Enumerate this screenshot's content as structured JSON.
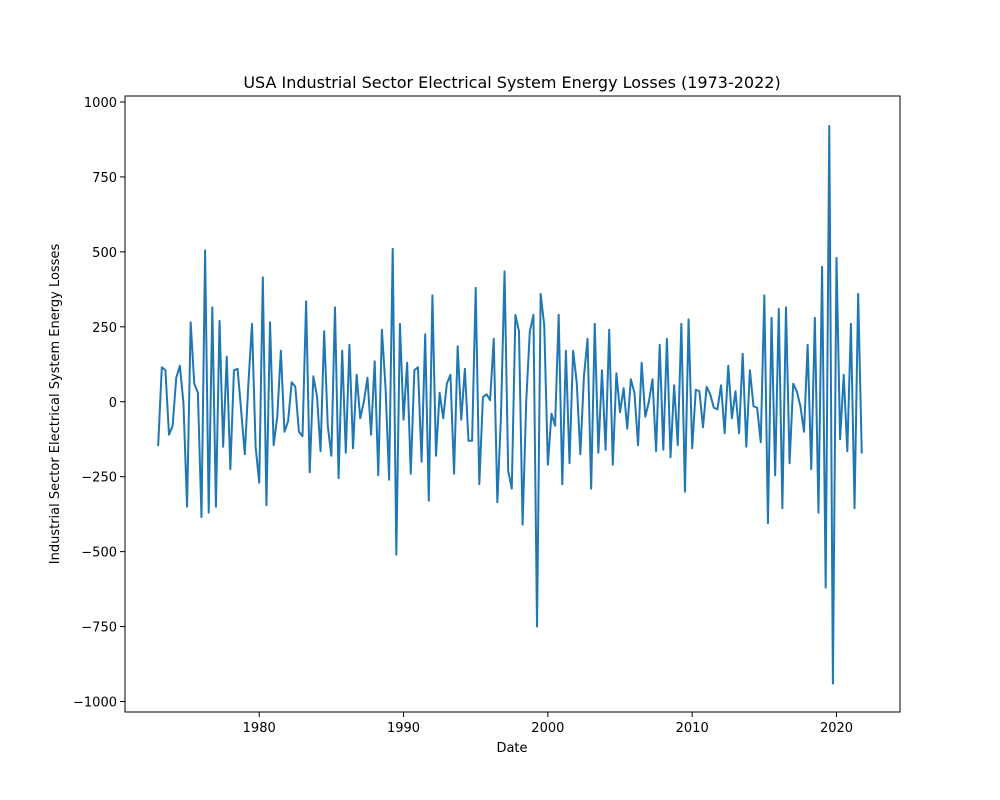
{
  "chart_data": {
    "type": "line",
    "title": "USA Industrial Sector Electrical System Energy Losses (1973-2022)",
    "xlabel": "Date",
    "ylabel": "Industrial Sector Electrical System Energy Losses",
    "xlim": [
      1970.7,
      2024.4
    ],
    "ylim": [
      -1035,
      1020
    ],
    "x_ticks": [
      1980,
      1990,
      2000,
      2010,
      2020
    ],
    "y_ticks": [
      -1000,
      -750,
      -500,
      -250,
      0,
      250,
      500,
      750,
      1000
    ],
    "grid": false,
    "line_color": "#1f77b4",
    "series": [
      {
        "x": [
          1973.0,
          1973.25,
          1973.5,
          1973.75,
          1974.0,
          1974.25,
          1974.5,
          1974.75,
          1975.0,
          1975.25,
          1975.5,
          1975.75,
          1976.0,
          1976.25,
          1976.5,
          1976.75,
          1977.0,
          1977.25,
          1977.5,
          1977.75,
          1978.0,
          1978.25,
          1978.5,
          1978.75,
          1979.0,
          1979.25,
          1979.5,
          1979.75,
          1980.0,
          1980.25,
          1980.5,
          1980.75,
          1981.0,
          1981.25,
          1981.5,
          1981.75,
          1982.0,
          1982.25,
          1982.5,
          1982.75,
          1983.0,
          1983.25,
          1983.5,
          1983.75,
          1984.0,
          1984.25,
          1984.5,
          1984.75,
          1985.0,
          1985.25,
          1985.5,
          1985.75,
          1986.0,
          1986.25,
          1986.5,
          1986.75,
          1987.0,
          1987.25,
          1987.5,
          1987.75,
          1988.0,
          1988.25,
          1988.5,
          1988.75,
          1989.0,
          1989.25,
          1989.5,
          1989.75,
          1990.0,
          1990.25,
          1990.5,
          1990.75,
          1991.0,
          1991.25,
          1991.5,
          1991.75,
          1992.0,
          1992.25,
          1992.5,
          1992.75,
          1993.0,
          1993.25,
          1993.5,
          1993.75,
          1994.0,
          1994.25,
          1994.5,
          1994.75,
          1995.0,
          1995.25,
          1995.5,
          1995.75,
          1996.0,
          1996.25,
          1996.5,
          1996.75,
          1997.0,
          1997.25,
          1997.5,
          1997.75,
          1998.0,
          1998.25,
          1998.5,
          1998.75,
          1999.0,
          1999.25,
          1999.5,
          1999.75,
          2000.0,
          2000.25,
          2000.5,
          2000.75,
          2001.0,
          2001.25,
          2001.5,
          2001.75,
          2002.0,
          2002.25,
          2002.5,
          2002.75,
          2003.0,
          2003.25,
          2003.5,
          2003.75,
          2004.0,
          2004.25,
          2004.5,
          2004.75,
          2005.0,
          2005.25,
          2005.5,
          2005.75,
          2006.0,
          2006.25,
          2006.5,
          2006.75,
          2007.0,
          2007.25,
          2007.5,
          2007.75,
          2008.0,
          2008.25,
          2008.5,
          2008.75,
          2009.0,
          2009.25,
          2009.5,
          2009.75,
          2010.0,
          2010.25,
          2010.5,
          2010.75,
          2011.0,
          2011.25,
          2011.5,
          2011.75,
          2012.0,
          2012.25,
          2012.5,
          2012.75,
          2013.0,
          2013.25,
          2013.5,
          2013.75,
          2014.0,
          2014.25,
          2014.5,
          2014.75,
          2015.0,
          2015.25,
          2015.5,
          2015.75,
          2016.0,
          2016.25,
          2016.5,
          2016.75,
          2017.0,
          2017.25,
          2017.5,
          2017.75,
          2018.0,
          2018.25,
          2018.5,
          2018.75,
          2019.0,
          2019.25,
          2019.5,
          2019.75,
          2020.0,
          2020.25,
          2020.5,
          2020.75,
          2021.0,
          2021.25,
          2021.5,
          2021.75
        ],
        "y": [
          -145,
          115,
          105,
          -110,
          -80,
          80,
          120,
          -5,
          -350,
          265,
          60,
          30,
          -385,
          505,
          -370,
          315,
          -350,
          270,
          -150,
          150,
          -225,
          105,
          110,
          -30,
          -175,
          60,
          260,
          -150,
          -270,
          415,
          -345,
          265,
          -145,
          -50,
          170,
          -100,
          -65,
          65,
          50,
          -100,
          -115,
          335,
          -235,
          85,
          20,
          -165,
          235,
          -80,
          -180,
          315,
          -255,
          170,
          -170,
          190,
          -155,
          90,
          -55,
          0,
          80,
          -110,
          135,
          -245,
          240,
          50,
          -260,
          510,
          -510,
          260,
          -60,
          130,
          -240,
          105,
          115,
          -200,
          225,
          -330,
          355,
          -180,
          30,
          -55,
          60,
          90,
          -240,
          185,
          -60,
          110,
          -130,
          -130,
          380,
          -275,
          15,
          25,
          5,
          210,
          -335,
          -50,
          435,
          -230,
          -290,
          290,
          235,
          -410,
          0,
          235,
          290,
          -750,
          360,
          255,
          -210,
          -40,
          -80,
          290,
          -275,
          170,
          -205,
          170,
          65,
          -175,
          85,
          210,
          -290,
          260,
          -170,
          105,
          -160,
          240,
          -210,
          95,
          -35,
          45,
          -90,
          75,
          30,
          -145,
          130,
          -50,
          0,
          75,
          -165,
          190,
          -160,
          210,
          -185,
          55,
          -145,
          260,
          -300,
          275,
          -155,
          40,
          35,
          -85,
          50,
          25,
          -20,
          -25,
          55,
          -105,
          120,
          -55,
          35,
          -105,
          160,
          -150,
          105,
          -15,
          -20,
          -135,
          355,
          -405,
          280,
          -245,
          310,
          -355,
          315,
          -205,
          60,
          35,
          -15,
          -100,
          190,
          -225,
          280,
          -370,
          450,
          -620,
          920,
          -940,
          480,
          -125,
          90,
          -165,
          260,
          -355,
          360,
          -170
        ]
      }
    ]
  }
}
